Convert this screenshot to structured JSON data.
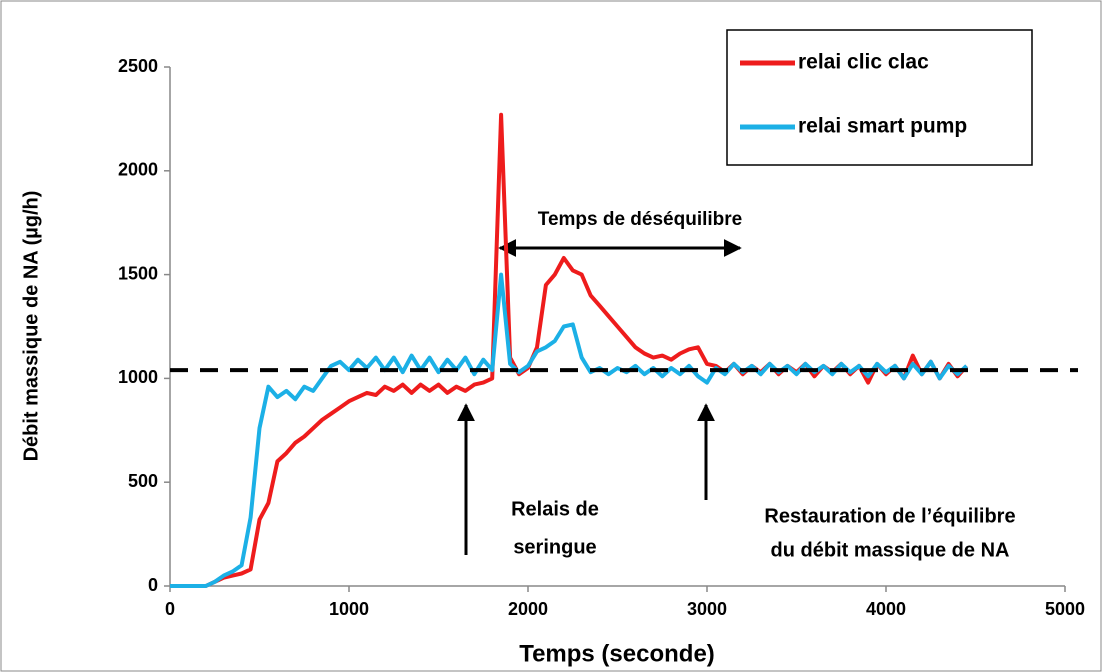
{
  "chart_data": {
    "type": "line",
    "x_label": "Temps (seconde)",
    "y_label": "Débit massique de NA (µg/h)",
    "x": [
      0,
      50,
      100,
      150,
      200,
      250,
      300,
      350,
      400,
      450,
      500,
      550,
      600,
      650,
      700,
      750,
      800,
      850,
      900,
      950,
      1000,
      1050,
      1100,
      1150,
      1200,
      1250,
      1300,
      1350,
      1400,
      1450,
      1500,
      1550,
      1600,
      1650,
      1700,
      1750,
      1800,
      1850,
      1900,
      1950,
      2000,
      2050,
      2100,
      2150,
      2200,
      2250,
      2300,
      2350,
      2400,
      2450,
      2500,
      2550,
      2600,
      2650,
      2700,
      2750,
      2800,
      2850,
      2900,
      2950,
      3000,
      3050,
      3100,
      3150,
      3200,
      3250,
      3300,
      3350,
      3400,
      3450,
      3500,
      3550,
      3600,
      3650,
      3700,
      3750,
      3800,
      3850,
      3900,
      3950,
      4000,
      4050,
      4100,
      4150,
      4200,
      4250,
      4300,
      4350,
      4400,
      4450
    ],
    "series": [
      {
        "name": "relai clic clac",
        "color": "#ee1c1c",
        "values": [
          0,
          0,
          0,
          0,
          0,
          20,
          40,
          50,
          60,
          80,
          320,
          400,
          600,
          640,
          690,
          720,
          760,
          800,
          830,
          860,
          890,
          910,
          930,
          920,
          960,
          940,
          970,
          930,
          970,
          940,
          970,
          930,
          960,
          940,
          970,
          980,
          1000,
          2270,
          1100,
          1020,
          1050,
          1150,
          1450,
          1500,
          1580,
          1520,
          1500,
          1400,
          1350,
          1300,
          1250,
          1200,
          1150,
          1120,
          1100,
          1110,
          1090,
          1120,
          1140,
          1150,
          1070,
          1060,
          1030,
          1070,
          1020,
          1060,
          1030,
          1070,
          1020,
          1060,
          1030,
          1070,
          1010,
          1060,
          1030,
          1070,
          1020,
          1060,
          980,
          1070,
          1020,
          1060,
          1000,
          1110,
          1020,
          1080,
          1000,
          1070,
          1010,
          1060
        ]
      },
      {
        "name": "relai smart pump",
        "color": "#1cb0e6",
        "values": [
          0,
          0,
          0,
          0,
          0,
          20,
          50,
          70,
          100,
          330,
          760,
          960,
          910,
          940,
          900,
          960,
          940,
          1000,
          1060,
          1080,
          1040,
          1090,
          1050,
          1100,
          1040,
          1100,
          1030,
          1110,
          1040,
          1100,
          1030,
          1090,
          1040,
          1100,
          1020,
          1090,
          1040,
          1500,
          1070,
          1030,
          1060,
          1130,
          1150,
          1180,
          1250,
          1260,
          1100,
          1030,
          1050,
          1020,
          1050,
          1030,
          1060,
          1020,
          1050,
          1010,
          1050,
          1020,
          1060,
          1010,
          980,
          1050,
          1020,
          1070,
          1030,
          1060,
          1020,
          1070,
          1030,
          1060,
          1020,
          1070,
          1030,
          1060,
          1020,
          1070,
          1030,
          1060,
          1010,
          1070,
          1030,
          1060,
          1000,
          1070,
          1020,
          1080,
          1000,
          1060,
          1020,
          1060
        ]
      }
    ],
    "xlim": [
      0,
      5000
    ],
    "xticks": [
      0,
      1000,
      2000,
      3000,
      4000,
      5000
    ],
    "ylim": [
      0,
      2500
    ],
    "yticks": [
      0,
      500,
      1000,
      1500,
      2000,
      2500
    ],
    "grid": false,
    "legend": "upper right",
    "reference_line": 1040,
    "annotations": {
      "imbalance": "Temps de déséquilibre",
      "relay": [
        "Relais de",
        "seringue"
      ],
      "restore": [
        "Restauration de l’équilibre",
        "du débit massique de NA"
      ]
    }
  }
}
